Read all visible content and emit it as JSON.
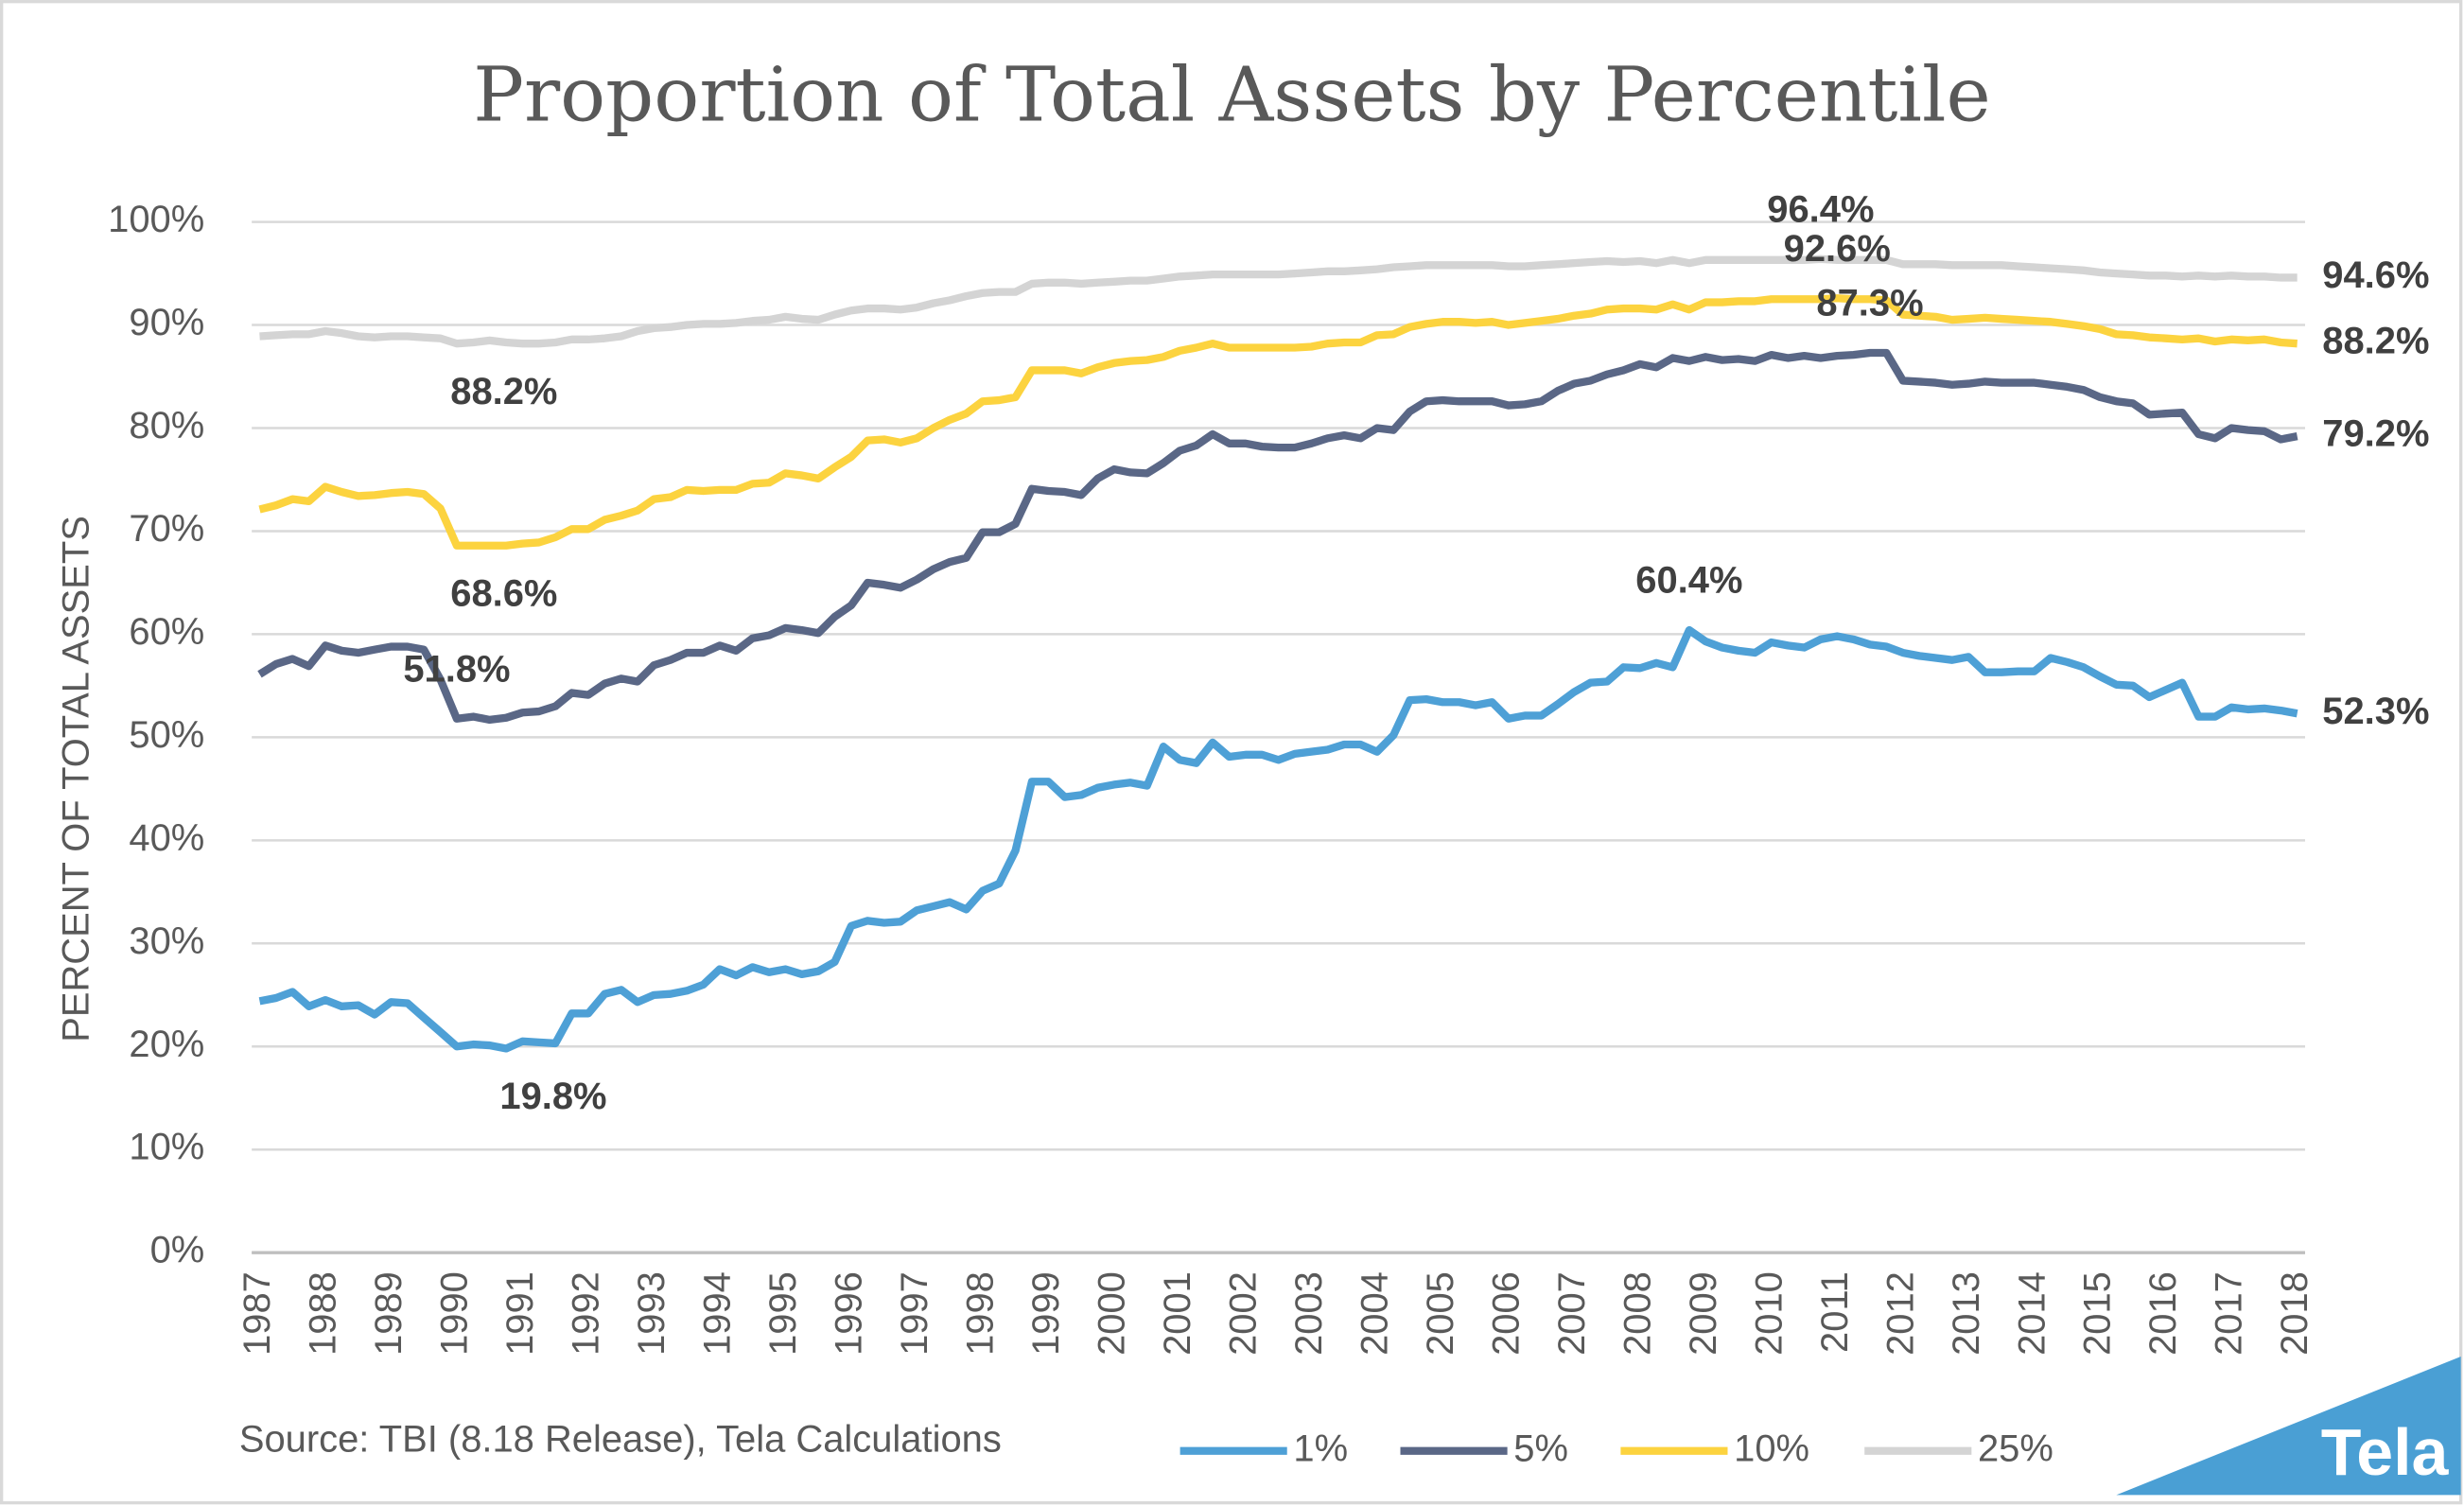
{
  "chart_data": {
    "type": "line",
    "title": "Proportion of Total Assets by Percentile",
    "y_label": "PERCENT OF TOTAL ASSETS",
    "source": "Source: TBI (8.18 Release), Tela Calculations",
    "logo": "Tela",
    "categories": [
      "1987",
      null,
      null,
      null,
      "1988",
      null,
      null,
      null,
      "1989",
      null,
      null,
      null,
      "1990",
      null,
      null,
      null,
      "1991",
      null,
      null,
      null,
      "1992",
      null,
      null,
      null,
      "1993",
      null,
      null,
      null,
      "1994",
      null,
      null,
      null,
      "1995",
      null,
      null,
      null,
      "1996",
      null,
      null,
      null,
      "1997",
      null,
      null,
      null,
      "1998",
      null,
      null,
      null,
      "1999",
      null,
      null,
      null,
      "2000",
      null,
      null,
      null,
      "2001",
      null,
      null,
      null,
      "2002",
      null,
      null,
      null,
      "2003",
      null,
      null,
      null,
      "2004",
      null,
      null,
      null,
      "2005",
      null,
      null,
      null,
      "2006",
      null,
      null,
      null,
      "2007",
      null,
      null,
      null,
      "2008",
      null,
      null,
      null,
      "2009",
      null,
      null,
      null,
      "2010",
      null,
      null,
      null,
      "2011",
      null,
      null,
      null,
      "2012",
      null,
      null,
      null,
      "2013",
      null,
      null,
      null,
      "2014",
      null,
      null,
      null,
      "2015",
      null,
      null,
      null,
      "2016",
      null,
      null,
      null,
      "2017",
      null,
      null,
      null,
      "2018"
    ],
    "ylim": [
      0,
      100
    ],
    "yticks": [
      {
        "value": 0,
        "label": "0%"
      },
      {
        "value": 10,
        "label": "10%"
      },
      {
        "value": 20,
        "label": "20%"
      },
      {
        "value": 30,
        "label": "30%"
      },
      {
        "value": 40,
        "label": "40%"
      },
      {
        "value": 50,
        "label": "50%"
      },
      {
        "value": 60,
        "label": "60%"
      },
      {
        "value": 70,
        "label": "70%"
      },
      {
        "value": 80,
        "label": "80%"
      },
      {
        "value": 90,
        "label": "90%"
      },
      {
        "value": 100,
        "label": "100%"
      }
    ],
    "grid": true,
    "legend": "bottom",
    "series": [
      {
        "name": "1%",
        "color": "#4ea0d6",
        "values": [
          24.4,
          24.7,
          25.3,
          23.9,
          24.5,
          23.9,
          24.0,
          23.1,
          24.3,
          24.2,
          22.8,
          21.4,
          20.0,
          20.2,
          20.1,
          19.8,
          20.5,
          20.4,
          20.3,
          23.2,
          23.2,
          25.1,
          25.5,
          24.3,
          25.0,
          25.1,
          25.4,
          26.0,
          27.5,
          26.9,
          27.7,
          27.2,
          27.5,
          27.0,
          27.3,
          28.2,
          31.7,
          32.2,
          32.0,
          32.1,
          33.2,
          33.6,
          34.0,
          33.3,
          35.1,
          35.8,
          39.0,
          45.7,
          45.7,
          44.2,
          44.4,
          45.1,
          45.4,
          45.6,
          45.3,
          49.1,
          47.8,
          47.5,
          49.5,
          48.1,
          48.3,
          48.3,
          47.8,
          48.4,
          48.6,
          48.8,
          49.3,
          49.3,
          48.6,
          50.2,
          53.6,
          53.7,
          53.4,
          53.4,
          53.1,
          53.4,
          51.8,
          52.1,
          52.1,
          53.2,
          54.4,
          55.3,
          55.4,
          56.8,
          56.7,
          57.2,
          56.8,
          60.4,
          59.3,
          58.7,
          58.4,
          58.2,
          59.2,
          58.9,
          58.7,
          59.5,
          59.8,
          59.5,
          59.0,
          58.8,
          58.2,
          57.9,
          57.7,
          57.5,
          57.8,
          56.3,
          56.3,
          56.4,
          56.4,
          57.7,
          57.3,
          56.8,
          55.9,
          55.1,
          55.0,
          53.9,
          54.6,
          55.3,
          52.0,
          52.0,
          52.9,
          52.7,
          52.8,
          52.6,
          52.3
        ],
        "value_labels": [
          null,
          null,
          null,
          null,
          null,
          null,
          null,
          null,
          null,
          null,
          null,
          null,
          null,
          null,
          null,
          "19.8%",
          null,
          null,
          null,
          null,
          null,
          null,
          null,
          null,
          null,
          null,
          null,
          null,
          null,
          null,
          null,
          null,
          null,
          null,
          null,
          null,
          null,
          null,
          null,
          null,
          null,
          null,
          null,
          null,
          null,
          null,
          null,
          null,
          null,
          null,
          null,
          null,
          null,
          null,
          null,
          null,
          null,
          null,
          null,
          null,
          null,
          null,
          null,
          null,
          null,
          null,
          null,
          null,
          null,
          null,
          null,
          null,
          null,
          null,
          null,
          null,
          null,
          null,
          null,
          null,
          null,
          null,
          null,
          null,
          null,
          null,
          null,
          "60.4%",
          null,
          null,
          null,
          null,
          null,
          null,
          null,
          null,
          null,
          null,
          null,
          null,
          null,
          null,
          null,
          null,
          null,
          null,
          null,
          null,
          null,
          null,
          null,
          null,
          null,
          null,
          null,
          null,
          null,
          null,
          null,
          null,
          null,
          null,
          null,
          null,
          "52.3%"
        ]
      },
      {
        "name": "5%",
        "color": "#5a6786",
        "values": [
          56.1,
          57.1,
          57.6,
          56.9,
          58.9,
          58.4,
          58.2,
          58.5,
          58.8,
          58.8,
          58.5,
          55.6,
          51.8,
          52.0,
          51.7,
          51.9,
          52.4,
          52.5,
          53.0,
          54.3,
          54.1,
          55.2,
          55.7,
          55.4,
          57.0,
          57.5,
          58.2,
          58.2,
          58.9,
          58.4,
          59.6,
          59.9,
          60.6,
          60.4,
          60.1,
          61.7,
          62.8,
          65.0,
          64.8,
          64.5,
          65.3,
          66.3,
          67.0,
          67.4,
          69.9,
          69.9,
          70.7,
          74.1,
          73.9,
          73.8,
          73.5,
          75.1,
          76.0,
          75.7,
          75.6,
          76.6,
          77.8,
          78.3,
          79.4,
          78.5,
          78.5,
          78.2,
          78.1,
          78.1,
          78.5,
          79.0,
          79.3,
          79.0,
          80.0,
          79.8,
          81.6,
          82.6,
          82.7,
          82.6,
          82.6,
          82.6,
          82.2,
          82.3,
          82.6,
          83.6,
          84.3,
          84.6,
          85.2,
          85.6,
          86.2,
          85.9,
          86.8,
          86.5,
          86.9,
          86.6,
          86.7,
          86.5,
          87.1,
          86.8,
          87.0,
          86.8,
          87.0,
          87.1,
          87.3,
          87.3,
          84.6,
          84.5,
          84.4,
          84.2,
          84.3,
          84.5,
          84.4,
          84.4,
          84.4,
          84.2,
          84.0,
          83.7,
          83.0,
          82.6,
          82.4,
          81.3,
          81.4,
          81.5,
          79.4,
          79.0,
          80.0,
          79.8,
          79.7,
          78.9,
          79.2
        ],
        "value_labels": [
          null,
          null,
          null,
          null,
          null,
          null,
          null,
          null,
          null,
          null,
          null,
          null,
          "51.8%",
          null,
          null,
          null,
          null,
          null,
          null,
          null,
          null,
          null,
          null,
          null,
          null,
          null,
          null,
          null,
          null,
          null,
          null,
          null,
          null,
          null,
          null,
          null,
          null,
          null,
          null,
          null,
          null,
          null,
          null,
          null,
          null,
          null,
          null,
          null,
          null,
          null,
          null,
          null,
          null,
          null,
          null,
          null,
          null,
          null,
          null,
          null,
          null,
          null,
          null,
          null,
          null,
          null,
          null,
          null,
          null,
          null,
          null,
          null,
          null,
          null,
          null,
          null,
          null,
          null,
          null,
          null,
          null,
          null,
          null,
          null,
          null,
          null,
          null,
          null,
          null,
          null,
          null,
          null,
          null,
          null,
          null,
          null,
          null,
          null,
          "87.3%",
          null,
          null,
          null,
          null,
          null,
          null,
          null,
          null,
          null,
          null,
          null,
          null,
          null,
          null,
          null,
          null,
          null,
          null,
          null,
          null,
          null,
          null,
          null,
          null,
          null,
          "79.2%"
        ]
      },
      {
        "name": "10%",
        "color": "#fcd33f",
        "values": [
          72.1,
          72.5,
          73.1,
          72.9,
          74.3,
          73.8,
          73.4,
          73.5,
          73.7,
          73.8,
          73.6,
          72.2,
          68.6,
          68.6,
          68.6,
          68.6,
          68.8,
          68.9,
          69.4,
          70.2,
          70.2,
          71.1,
          71.5,
          72.0,
          73.1,
          73.3,
          74.0,
          73.9,
          74.0,
          74.0,
          74.6,
          74.7,
          75.6,
          75.4,
          75.1,
          76.2,
          77.2,
          78.8,
          78.9,
          78.6,
          79.0,
          80.0,
          80.8,
          81.4,
          82.6,
          82.7,
          83.0,
          85.6,
          85.6,
          85.6,
          85.3,
          85.9,
          86.3,
          86.5,
          86.6,
          86.9,
          87.5,
          87.8,
          88.2,
          87.8,
          87.8,
          87.8,
          87.8,
          87.8,
          87.9,
          88.2,
          88.3,
          88.3,
          89.0,
          89.1,
          89.8,
          90.1,
          90.3,
          90.3,
          90.2,
          90.3,
          90.0,
          90.2,
          90.4,
          90.6,
          90.9,
          91.1,
          91.5,
          91.6,
          91.6,
          91.5,
          92.0,
          91.5,
          92.2,
          92.2,
          92.3,
          92.3,
          92.5,
          92.5,
          92.5,
          92.5,
          92.6,
          92.5,
          92.5,
          92.4,
          91.0,
          90.9,
          90.8,
          90.5,
          90.6,
          90.7,
          90.6,
          90.5,
          90.4,
          90.3,
          90.1,
          89.9,
          89.6,
          89.1,
          89.0,
          88.8,
          88.7,
          88.6,
          88.7,
          88.4,
          88.6,
          88.5,
          88.6,
          88.3,
          88.2
        ],
        "value_labels": [
          null,
          null,
          null,
          null,
          null,
          null,
          null,
          null,
          null,
          null,
          null,
          null,
          "68.6%",
          null,
          null,
          null,
          null,
          null,
          null,
          null,
          null,
          null,
          null,
          null,
          null,
          null,
          null,
          null,
          null,
          null,
          null,
          null,
          null,
          null,
          null,
          null,
          null,
          null,
          null,
          null,
          null,
          null,
          null,
          null,
          null,
          null,
          null,
          null,
          null,
          null,
          null,
          null,
          null,
          null,
          null,
          null,
          null,
          null,
          null,
          null,
          null,
          null,
          null,
          null,
          null,
          null,
          null,
          null,
          null,
          null,
          null,
          null,
          null,
          null,
          null,
          null,
          null,
          null,
          null,
          null,
          null,
          null,
          null,
          null,
          null,
          null,
          null,
          null,
          null,
          null,
          null,
          null,
          null,
          null,
          null,
          null,
          "92.6%",
          null,
          null,
          null,
          null,
          null,
          null,
          null,
          null,
          null,
          null,
          null,
          null,
          null,
          null,
          null,
          null,
          null,
          null,
          null,
          null,
          null,
          null,
          null,
          null,
          null,
          null,
          null,
          "88.2%"
        ]
      },
      {
        "name": "25%",
        "color": "#d4d4d4",
        "values": [
          88.9,
          89.0,
          89.1,
          89.1,
          89.4,
          89.2,
          88.9,
          88.8,
          88.9,
          88.9,
          88.8,
          88.7,
          88.2,
          88.3,
          88.5,
          88.3,
          88.2,
          88.2,
          88.3,
          88.6,
          88.6,
          88.7,
          88.9,
          89.4,
          89.7,
          89.8,
          90.0,
          90.1,
          90.1,
          90.2,
          90.4,
          90.5,
          90.8,
          90.6,
          90.5,
          91.0,
          91.4,
          91.6,
          91.6,
          91.5,
          91.7,
          92.1,
          92.4,
          92.8,
          93.1,
          93.2,
          93.2,
          94.0,
          94.1,
          94.1,
          94.0,
          94.1,
          94.2,
          94.3,
          94.3,
          94.5,
          94.7,
          94.8,
          94.9,
          94.9,
          94.9,
          94.9,
          94.9,
          95.0,
          95.1,
          95.2,
          95.2,
          95.3,
          95.4,
          95.6,
          95.7,
          95.8,
          95.8,
          95.8,
          95.8,
          95.8,
          95.7,
          95.7,
          95.8,
          95.9,
          96.0,
          96.1,
          96.2,
          96.1,
          96.2,
          96.0,
          96.3,
          96.0,
          96.3,
          96.3,
          96.3,
          96.3,
          96.3,
          96.3,
          96.3,
          96.4,
          96.3,
          96.3,
          96.3,
          96.3,
          95.9,
          95.9,
          95.9,
          95.8,
          95.8,
          95.8,
          95.8,
          95.7,
          95.6,
          95.5,
          95.4,
          95.3,
          95.1,
          95.0,
          94.9,
          94.8,
          94.8,
          94.7,
          94.8,
          94.7,
          94.8,
          94.7,
          94.7,
          94.6,
          94.6
        ],
        "value_labels": [
          null,
          null,
          null,
          null,
          null,
          null,
          null,
          null,
          null,
          null,
          null,
          null,
          "88.2%",
          null,
          null,
          null,
          null,
          null,
          null,
          null,
          null,
          null,
          null,
          null,
          null,
          null,
          null,
          null,
          null,
          null,
          null,
          null,
          null,
          null,
          null,
          null,
          null,
          null,
          null,
          null,
          null,
          null,
          null,
          null,
          null,
          null,
          null,
          null,
          null,
          null,
          null,
          null,
          null,
          null,
          null,
          null,
          null,
          null,
          null,
          null,
          null,
          null,
          null,
          null,
          null,
          null,
          null,
          null,
          null,
          null,
          null,
          null,
          null,
          null,
          null,
          null,
          null,
          null,
          null,
          null,
          null,
          null,
          null,
          null,
          null,
          null,
          null,
          null,
          null,
          null,
          null,
          null,
          null,
          null,
          null,
          "96.4%",
          null,
          null,
          null,
          null,
          null,
          null,
          null,
          null,
          null,
          null,
          null,
          null,
          null,
          null,
          null,
          null,
          null,
          null,
          null,
          null,
          null,
          null,
          null,
          null,
          null,
          null,
          null,
          null,
          "94.6%"
        ]
      }
    ]
  }
}
